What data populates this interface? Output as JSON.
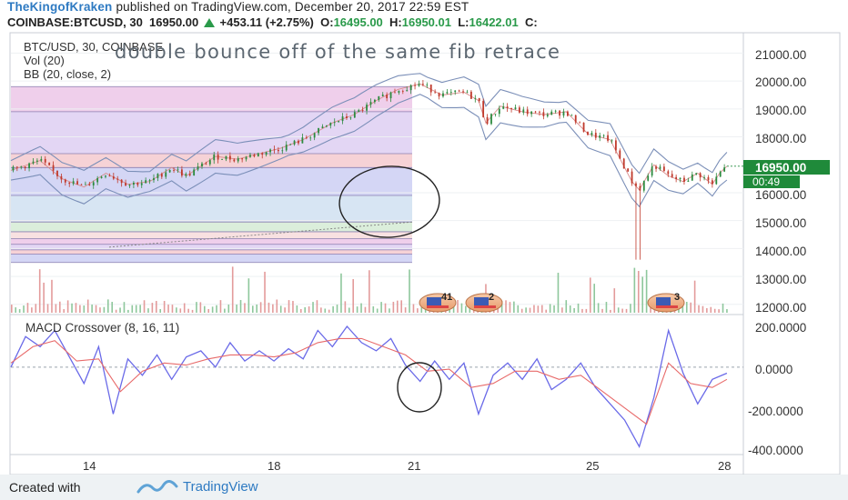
{
  "header": {
    "author": "TheKingofKraken",
    "published_text": "published on TradingView.com, December 20, 2017 22:59 EST",
    "symbol_interval": "COINBASE:BTCUSD, 30",
    "last_price": "16950.00",
    "change": "+453.11 (+2.75%)",
    "ohlc_open_label": "O:",
    "ohlc_open": "16495.00",
    "ohlc_high_label": "H:",
    "ohlc_high": "16950.01",
    "ohlc_low_label": "L:",
    "ohlc_low": "16422.01",
    "ohlc_close_label": "C:"
  },
  "panel_labels": {
    "symbol": "BTC/USD, 30, COINBASE",
    "annotation": "double bounce off of the same fib retrace",
    "vol": "Vol (20)",
    "bb": "BB (20, close, 2)",
    "macd": "MACD Crossover (8, 16, 11)"
  },
  "price_axis": {
    "ticks": [
      "21000.00",
      "20000.00",
      "19000.00",
      "18000.00",
      "16000.00",
      "15000.00",
      "14000.00",
      "13000.00",
      "12000.00"
    ],
    "current_price": "16950.00",
    "countdown": "00:49"
  },
  "macd_axis": {
    "ticks": [
      "200.0000",
      "0.0000",
      "-200.0000",
      "-400.0000"
    ]
  },
  "time_axis": {
    "ticks": [
      "14",
      "18",
      "21",
      "25",
      "28"
    ]
  },
  "event_badges": [
    "41",
    "2",
    "3"
  ],
  "footer": {
    "created_with": "Created with",
    "brand": "TradingView"
  },
  "colors": {
    "candle_up": "#2b8a3e",
    "candle_down": "#c0392b",
    "bollinger": "#7b8fb8",
    "macd_line": "#6a6ae8",
    "signal_line": "#e86a6a",
    "current_price_tag": "#1f8a3a",
    "fib_zones": [
      "#e9bfe4",
      "#d9c8f0",
      "#f3c3c8",
      "#c6c8f2",
      "#c9dcef",
      "#cfe8cf",
      "#f6d7d7"
    ]
  },
  "chart_data": [
    {
      "type": "candlestick",
      "title": "BTC/USD, 30, COINBASE",
      "x_tick_labels": [
        "14",
        "18",
        "21",
        "25",
        "28"
      ],
      "ylim": [
        11700,
        21600
      ],
      "y_ticks": [
        21000,
        20000,
        19000,
        18000,
        16000,
        15000,
        14000,
        13000,
        12000
      ],
      "current_price": 16950.0,
      "close_path": [
        [
          0,
          16800
        ],
        [
          4,
          17150
        ],
        [
          7,
          16500
        ],
        [
          10,
          16200
        ],
        [
          13,
          16700
        ],
        [
          16,
          16300
        ],
        [
          19,
          16400
        ],
        [
          22,
          16900
        ],
        [
          24,
          16600
        ],
        [
          28,
          17300
        ],
        [
          31,
          17200
        ],
        [
          34,
          17400
        ],
        [
          37,
          17600
        ],
        [
          40,
          17900
        ],
        [
          44,
          18500
        ],
        [
          47,
          18800
        ],
        [
          50,
          19300
        ],
        [
          53,
          19700
        ],
        [
          56,
          19900
        ],
        [
          59,
          19500
        ],
        [
          62,
          19600
        ],
        [
          64,
          19300
        ],
        [
          65,
          18500
        ],
        [
          67,
          19100
        ],
        [
          70,
          18900
        ],
        [
          73,
          18800
        ],
        [
          76,
          18900
        ],
        [
          79,
          18100
        ],
        [
          82,
          17900
        ],
        [
          85,
          16400
        ],
        [
          86,
          16100
        ],
        [
          88,
          17000
        ],
        [
          90,
          16600
        ],
        [
          92,
          16400
        ],
        [
          94,
          16700
        ],
        [
          96,
          16300
        ],
        [
          97,
          16700
        ],
        [
          98,
          16950
        ]
      ],
      "fib_levels": [
        19800,
        18900,
        17400,
        16900,
        15900,
        14950,
        14600,
        14350,
        14150,
        13950,
        13800,
        13500
      ]
    },
    {
      "type": "line",
      "title": "MACD Crossover (8, 16, 11)",
      "x_tick_labels": [
        "14",
        "18",
        "21",
        "25",
        "28"
      ],
      "ylim": [
        -420,
        240
      ],
      "y_ticks": [
        200,
        0,
        -200,
        -400
      ],
      "series": [
        {
          "values": [
            [
              0,
              0
            ],
            [
              2,
              150
            ],
            [
              4,
              100
            ],
            [
              6,
              180
            ],
            [
              8,
              50
            ],
            [
              10,
              -80
            ],
            [
              12,
              100
            ],
            [
              14,
              -230
            ],
            [
              16,
              40
            ],
            [
              18,
              -40
            ],
            [
              20,
              60
            ],
            [
              22,
              -60
            ],
            [
              24,
              50
            ],
            [
              26,
              80
            ],
            [
              28,
              0
            ],
            [
              30,
              120
            ],
            [
              32,
              30
            ],
            [
              34,
              80
            ],
            [
              36,
              30
            ],
            [
              38,
              90
            ],
            [
              40,
              40
            ],
            [
              42,
              180
            ],
            [
              44,
              100
            ],
            [
              46,
              200
            ],
            [
              48,
              120
            ],
            [
              50,
              80
            ],
            [
              52,
              140
            ],
            [
              54,
              10
            ],
            [
              56,
              -70
            ],
            [
              58,
              30
            ],
            [
              60,
              -60
            ],
            [
              62,
              20
            ],
            [
              64,
              -230
            ],
            [
              66,
              -40
            ],
            [
              68,
              20
            ],
            [
              70,
              -60
            ],
            [
              72,
              40
            ],
            [
              74,
              -110
            ],
            [
              76,
              -60
            ],
            [
              78,
              20
            ],
            [
              80,
              -100
            ],
            [
              82,
              -180
            ],
            [
              84,
              -260
            ],
            [
              86,
              -390
            ],
            [
              88,
              -150
            ],
            [
              90,
              180
            ],
            [
              92,
              -30
            ],
            [
              94,
              -180
            ],
            [
              96,
              -60
            ],
            [
              98,
              -30
            ]
          ]
        },
        {
          "values": [
            [
              0,
              20
            ],
            [
              3,
              100
            ],
            [
              6,
              130
            ],
            [
              9,
              30
            ],
            [
              12,
              40
            ],
            [
              15,
              -120
            ],
            [
              18,
              -20
            ],
            [
              21,
              20
            ],
            [
              24,
              10
            ],
            [
              27,
              40
            ],
            [
              30,
              60
            ],
            [
              33,
              60
            ],
            [
              36,
              50
            ],
            [
              39,
              70
            ],
            [
              42,
              120
            ],
            [
              45,
              140
            ],
            [
              48,
              140
            ],
            [
              51,
              100
            ],
            [
              54,
              60
            ],
            [
              57,
              -20
            ],
            [
              60,
              -10
            ],
            [
              63,
              -100
            ],
            [
              66,
              -80
            ],
            [
              69,
              -20
            ],
            [
              72,
              -20
            ],
            [
              75,
              -60
            ],
            [
              78,
              -40
            ],
            [
              81,
              -120
            ],
            [
              84,
              -200
            ],
            [
              87,
              -280
            ],
            [
              90,
              20
            ],
            [
              93,
              -80
            ],
            [
              96,
              -100
            ],
            [
              98,
              -60
            ]
          ]
        }
      ]
    }
  ]
}
